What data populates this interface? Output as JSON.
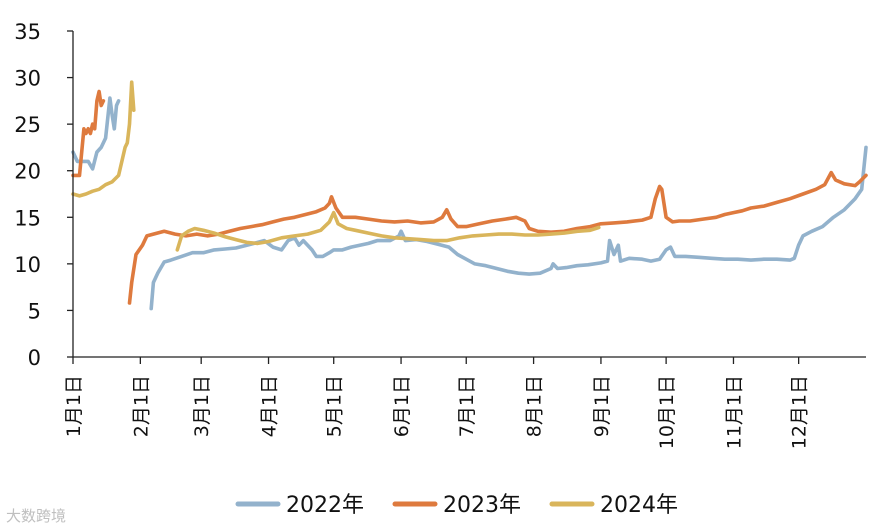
{
  "watermark": "大数跨境",
  "colors": {
    "s2022": "#93B2CC",
    "s2023": "#DE7A3E",
    "s2024": "#D9B55B",
    "axis": "#222222"
  },
  "chart_data": {
    "type": "line",
    "ylim": [
      0,
      35
    ],
    "yticks": [
      0,
      5,
      10,
      15,
      20,
      25,
      30,
      35
    ],
    "xlim": [
      0,
      365
    ],
    "xticks": [
      {
        "label": "1月1日",
        "day": 0
      },
      {
        "label": "2月1日",
        "day": 31
      },
      {
        "label": "3月1日",
        "day": 59
      },
      {
        "label": "4月1日",
        "day": 90
      },
      {
        "label": "5月1日",
        "day": 120
      },
      {
        "label": "6月1日",
        "day": 151
      },
      {
        "label": "7月1日",
        "day": 181
      },
      {
        "label": "8月1日",
        "day": 212
      },
      {
        "label": "9月1日",
        "day": 243
      },
      {
        "label": "10月1日",
        "day": 273
      },
      {
        "label": "11月1日",
        "day": 304
      },
      {
        "label": "12月1日",
        "day": 334
      }
    ],
    "legend_position": "bottom",
    "series": [
      {
        "name": "2022年",
        "color": "#93B2CC",
        "segments": [
          [
            [
              0,
              22
            ],
            [
              2,
              21
            ],
            [
              4,
              21
            ],
            [
              7,
              21
            ],
            [
              9,
              20.2
            ],
            [
              11,
              22
            ],
            [
              13,
              22.5
            ],
            [
              15,
              23.5
            ],
            [
              17,
              27.8
            ],
            [
              18,
              26
            ],
            [
              19,
              24.5
            ],
            [
              20,
              27
            ],
            [
              21,
              27.5
            ]
          ],
          [
            [
              36,
              5.2
            ],
            [
              37,
              8
            ],
            [
              39,
              9
            ],
            [
              42,
              10.2
            ],
            [
              45,
              10.4
            ],
            [
              50,
              10.8
            ],
            [
              55,
              11.2
            ],
            [
              60,
              11.2
            ],
            [
              65,
              11.5
            ],
            [
              70,
              11.6
            ],
            [
              75,
              11.7
            ],
            [
              80,
              12
            ],
            [
              85,
              12.3
            ],
            [
              88,
              12.5
            ],
            [
              92,
              11.8
            ],
            [
              96,
              11.5
            ],
            [
              99,
              12.5
            ],
            [
              102,
              12.8
            ],
            [
              104,
              12
            ],
            [
              106,
              12.5
            ],
            [
              110,
              11.5
            ],
            [
              112,
              10.8
            ],
            [
              115,
              10.8
            ],
            [
              118,
              11.2
            ],
            [
              120,
              11.5
            ],
            [
              124,
              11.5
            ],
            [
              128,
              11.8
            ],
            [
              132,
              12
            ],
            [
              136,
              12.2
            ],
            [
              140,
              12.5
            ],
            [
              146,
              12.5
            ],
            [
              150,
              13
            ],
            [
              151,
              13.5
            ],
            [
              153,
              12.5
            ],
            [
              158,
              12.6
            ],
            [
              163,
              12.4
            ],
            [
              168,
              12.1
            ],
            [
              173,
              11.8
            ],
            [
              177,
              11
            ],
            [
              181,
              10.5
            ],
            [
              185,
              10
            ],
            [
              190,
              9.8
            ],
            [
              195,
              9.5
            ],
            [
              200,
              9.2
            ],
            [
              205,
              9
            ],
            [
              210,
              8.9
            ],
            [
              215,
              9
            ],
            [
              220,
              9.5
            ],
            [
              221,
              10
            ],
            [
              223,
              9.5
            ],
            [
              227,
              9.6
            ],
            [
              232,
              9.8
            ],
            [
              237,
              9.9
            ],
            [
              243,
              10.1
            ],
            [
              246,
              10.3
            ],
            [
              247,
              12.5
            ],
            [
              249,
              11
            ],
            [
              251,
              12
            ],
            [
              252,
              10.3
            ],
            [
              256,
              10.6
            ],
            [
              262,
              10.5
            ],
            [
              266,
              10.3
            ],
            [
              270,
              10.5
            ],
            [
              273,
              11.5
            ],
            [
              275,
              11.8
            ],
            [
              277,
              10.8
            ],
            [
              282,
              10.8
            ],
            [
              288,
              10.7
            ],
            [
              294,
              10.6
            ],
            [
              300,
              10.5
            ],
            [
              306,
              10.5
            ],
            [
              312,
              10.4
            ],
            [
              318,
              10.5
            ],
            [
              324,
              10.5
            ],
            [
              330,
              10.4
            ],
            [
              332,
              10.6
            ],
            [
              334,
              12
            ],
            [
              336,
              13
            ],
            [
              340,
              13.5
            ],
            [
              345,
              14
            ],
            [
              350,
              15
            ],
            [
              355,
              15.8
            ],
            [
              360,
              17
            ],
            [
              363,
              18
            ],
            [
              365,
              22.5
            ]
          ]
        ]
      },
      {
        "name": "2023年",
        "color": "#DE7A3E",
        "segments": [
          [
            [
              0,
              19.5
            ],
            [
              3,
              19.5
            ],
            [
              5,
              24.5
            ],
            [
              6,
              24
            ],
            [
              7,
              24.5
            ],
            [
              8,
              24
            ],
            [
              9,
              25
            ],
            [
              10,
              24.5
            ],
            [
              11,
              27.5
            ],
            [
              12,
              28.5
            ],
            [
              13,
              27
            ],
            [
              14,
              27.5
            ]
          ],
          [
            [
              26,
              5.8
            ],
            [
              27,
              8
            ],
            [
              29,
              11
            ],
            [
              32,
              12
            ],
            [
              34,
              13
            ],
            [
              37,
              13.2
            ],
            [
              42,
              13.5
            ],
            [
              47,
              13.2
            ],
            [
              52,
              13
            ],
            [
              57,
              13.2
            ],
            [
              62,
              13
            ],
            [
              67,
              13.2
            ],
            [
              72,
              13.5
            ],
            [
              77,
              13.8
            ],
            [
              82,
              14
            ],
            [
              87,
              14.2
            ],
            [
              92,
              14.5
            ],
            [
              97,
              14.8
            ],
            [
              102,
              15
            ],
            [
              107,
              15.3
            ],
            [
              112,
              15.6
            ],
            [
              116,
              16
            ],
            [
              118,
              16.5
            ],
            [
              119,
              17.2
            ],
            [
              121,
              16
            ],
            [
              124,
              15
            ],
            [
              130,
              15
            ],
            [
              136,
              14.8
            ],
            [
              142,
              14.6
            ],
            [
              148,
              14.5
            ],
            [
              154,
              14.6
            ],
            [
              160,
              14.4
            ],
            [
              166,
              14.5
            ],
            [
              170,
              15
            ],
            [
              172,
              15.8
            ],
            [
              174,
              14.8
            ],
            [
              177,
              14
            ],
            [
              181,
              14
            ],
            [
              187,
              14.3
            ],
            [
              193,
              14.6
            ],
            [
              199,
              14.8
            ],
            [
              204,
              15
            ],
            [
              208,
              14.6
            ],
            [
              210,
              13.8
            ],
            [
              214,
              13.5
            ],
            [
              220,
              13.4
            ],
            [
              226,
              13.5
            ],
            [
              232,
              13.8
            ],
            [
              238,
              14
            ],
            [
              243,
              14.3
            ],
            [
              249,
              14.4
            ],
            [
              255,
              14.5
            ],
            [
              262,
              14.7
            ],
            [
              266,
              15
            ],
            [
              268,
              17
            ],
            [
              270,
              18.3
            ],
            [
              271,
              18
            ],
            [
              273,
              15
            ],
            [
              276,
              14.5
            ],
            [
              279,
              14.6
            ],
            [
              284,
              14.6
            ],
            [
              290,
              14.8
            ],
            [
              296,
              15
            ],
            [
              300,
              15.3
            ],
            [
              304,
              15.5
            ],
            [
              308,
              15.7
            ],
            [
              312,
              16
            ],
            [
              318,
              16.2
            ],
            [
              324,
              16.6
            ],
            [
              330,
              17
            ],
            [
              336,
              17.5
            ],
            [
              342,
              18
            ],
            [
              346,
              18.5
            ],
            [
              349,
              19.8
            ],
            [
              351,
              19
            ],
            [
              355,
              18.6
            ],
            [
              360,
              18.4
            ],
            [
              362,
              18.8
            ],
            [
              365,
              19.5
            ]
          ]
        ]
      },
      {
        "name": "2024年",
        "color": "#D9B55B",
        "segments": [
          [
            [
              0,
              17.5
            ],
            [
              3,
              17.3
            ],
            [
              6,
              17.5
            ],
            [
              9,
              17.8
            ],
            [
              12,
              18
            ],
            [
              15,
              18.5
            ],
            [
              18,
              18.8
            ],
            [
              21,
              19.5
            ],
            [
              24,
              22.5
            ],
            [
              25,
              23
            ],
            [
              26,
              25
            ],
            [
              27,
              29.5
            ],
            [
              28,
              26.5
            ]
          ],
          [
            [
              48,
              11.5
            ],
            [
              50,
              13
            ],
            [
              53,
              13.5
            ],
            [
              56,
              13.8
            ],
            [
              60,
              13.6
            ],
            [
              65,
              13.3
            ],
            [
              70,
              12.9
            ],
            [
              75,
              12.6
            ],
            [
              80,
              12.3
            ],
            [
              85,
              12.2
            ],
            [
              90,
              12.4
            ],
            [
              96,
              12.8
            ],
            [
              102,
              13
            ],
            [
              108,
              13.2
            ],
            [
              114,
              13.6
            ],
            [
              118,
              14.5
            ],
            [
              120,
              15.5
            ],
            [
              122,
              14.3
            ],
            [
              126,
              13.8
            ],
            [
              130,
              13.6
            ],
            [
              136,
              13.3
            ],
            [
              142,
              13
            ],
            [
              148,
              12.8
            ],
            [
              154,
              12.7
            ],
            [
              160,
              12.6
            ],
            [
              166,
              12.5
            ],
            [
              172,
              12.5
            ],
            [
              178,
              12.8
            ],
            [
              184,
              13
            ],
            [
              190,
              13.1
            ],
            [
              196,
              13.2
            ],
            [
              202,
              13.2
            ],
            [
              208,
              13.1
            ],
            [
              214,
              13.1
            ],
            [
              220,
              13.2
            ],
            [
              226,
              13.3
            ],
            [
              232,
              13.5
            ],
            [
              238,
              13.6
            ],
            [
              242,
              13.9
            ]
          ]
        ]
      }
    ]
  }
}
